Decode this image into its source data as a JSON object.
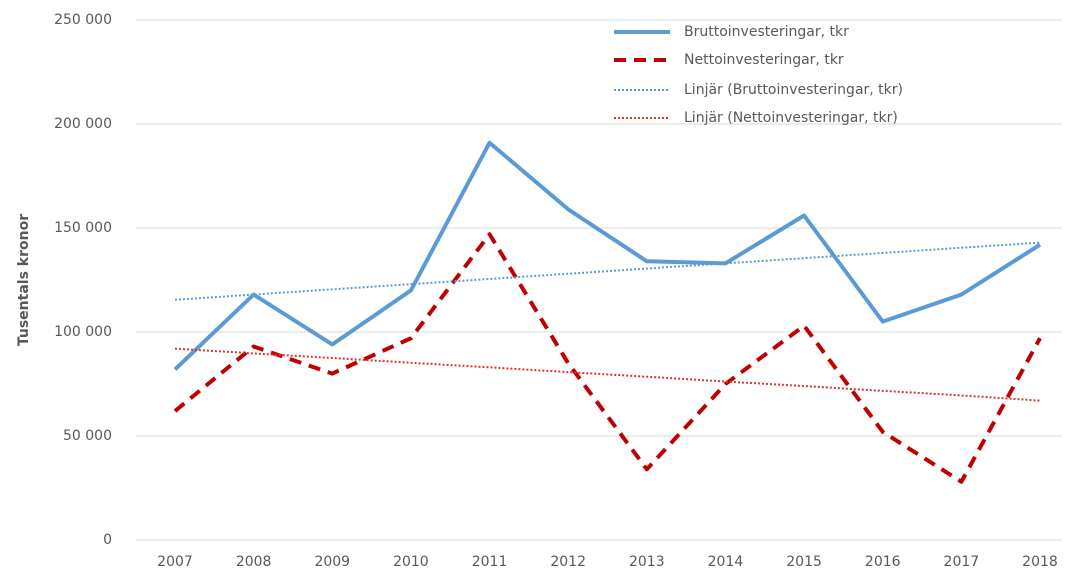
{
  "chart_data": {
    "type": "line",
    "y_label": "Tusentals kronor",
    "categories": [
      "2007",
      "2008",
      "2009",
      "2010",
      "2011",
      "2012",
      "2013",
      "2014",
      "2015",
      "2016",
      "2017",
      "2018"
    ],
    "series": [
      {
        "name": "Bruttoinvesteringar, tkr",
        "color": "#5b9bd5",
        "line_style": "solid",
        "line_width": 4,
        "values": [
          82000,
          118000,
          94000,
          120000,
          191000,
          159000,
          134000,
          133000,
          156000,
          105000,
          118000,
          142000
        ]
      },
      {
        "name": "Nettoinvesteringar, tkr",
        "color": "#c00000",
        "line_style": "dashed",
        "line_width": 4,
        "values": [
          62000,
          93000,
          80000,
          97000,
          147000,
          85000,
          34000,
          75000,
          103000,
          52000,
          28000,
          97000
        ]
      },
      {
        "name": "Linjär (Bruttoinvesteringar, tkr)",
        "color": "#5b9bd5",
        "line_style": "dotted",
        "line_width": 2,
        "values": [
          115500,
          118000,
          120500,
          123000,
          125500,
          128000,
          130500,
          133000,
          135500,
          138000,
          140500,
          143000
        ]
      },
      {
        "name": "Linjär (Nettoinvesteringar, tkr)",
        "color": "#e03030",
        "line_style": "dotted",
        "line_width": 2,
        "values": [
          92000,
          89700,
          87500,
          85200,
          83000,
          80700,
          78500,
          76200,
          74000,
          71700,
          69500,
          67000
        ]
      }
    ],
    "ylim": [
      0,
      250000
    ],
    "yticks": [
      0,
      {
        "value": 50000,
        "label": "50 000"
      },
      {
        "value": 100000,
        "label": "100 000"
      },
      {
        "value": 150000,
        "label": "150 000"
      },
      {
        "value": 200000,
        "label": "200 000"
      },
      {
        "value": 250000,
        "label": "250 000"
      }
    ],
    "grid": true,
    "legend": "upper right"
  }
}
